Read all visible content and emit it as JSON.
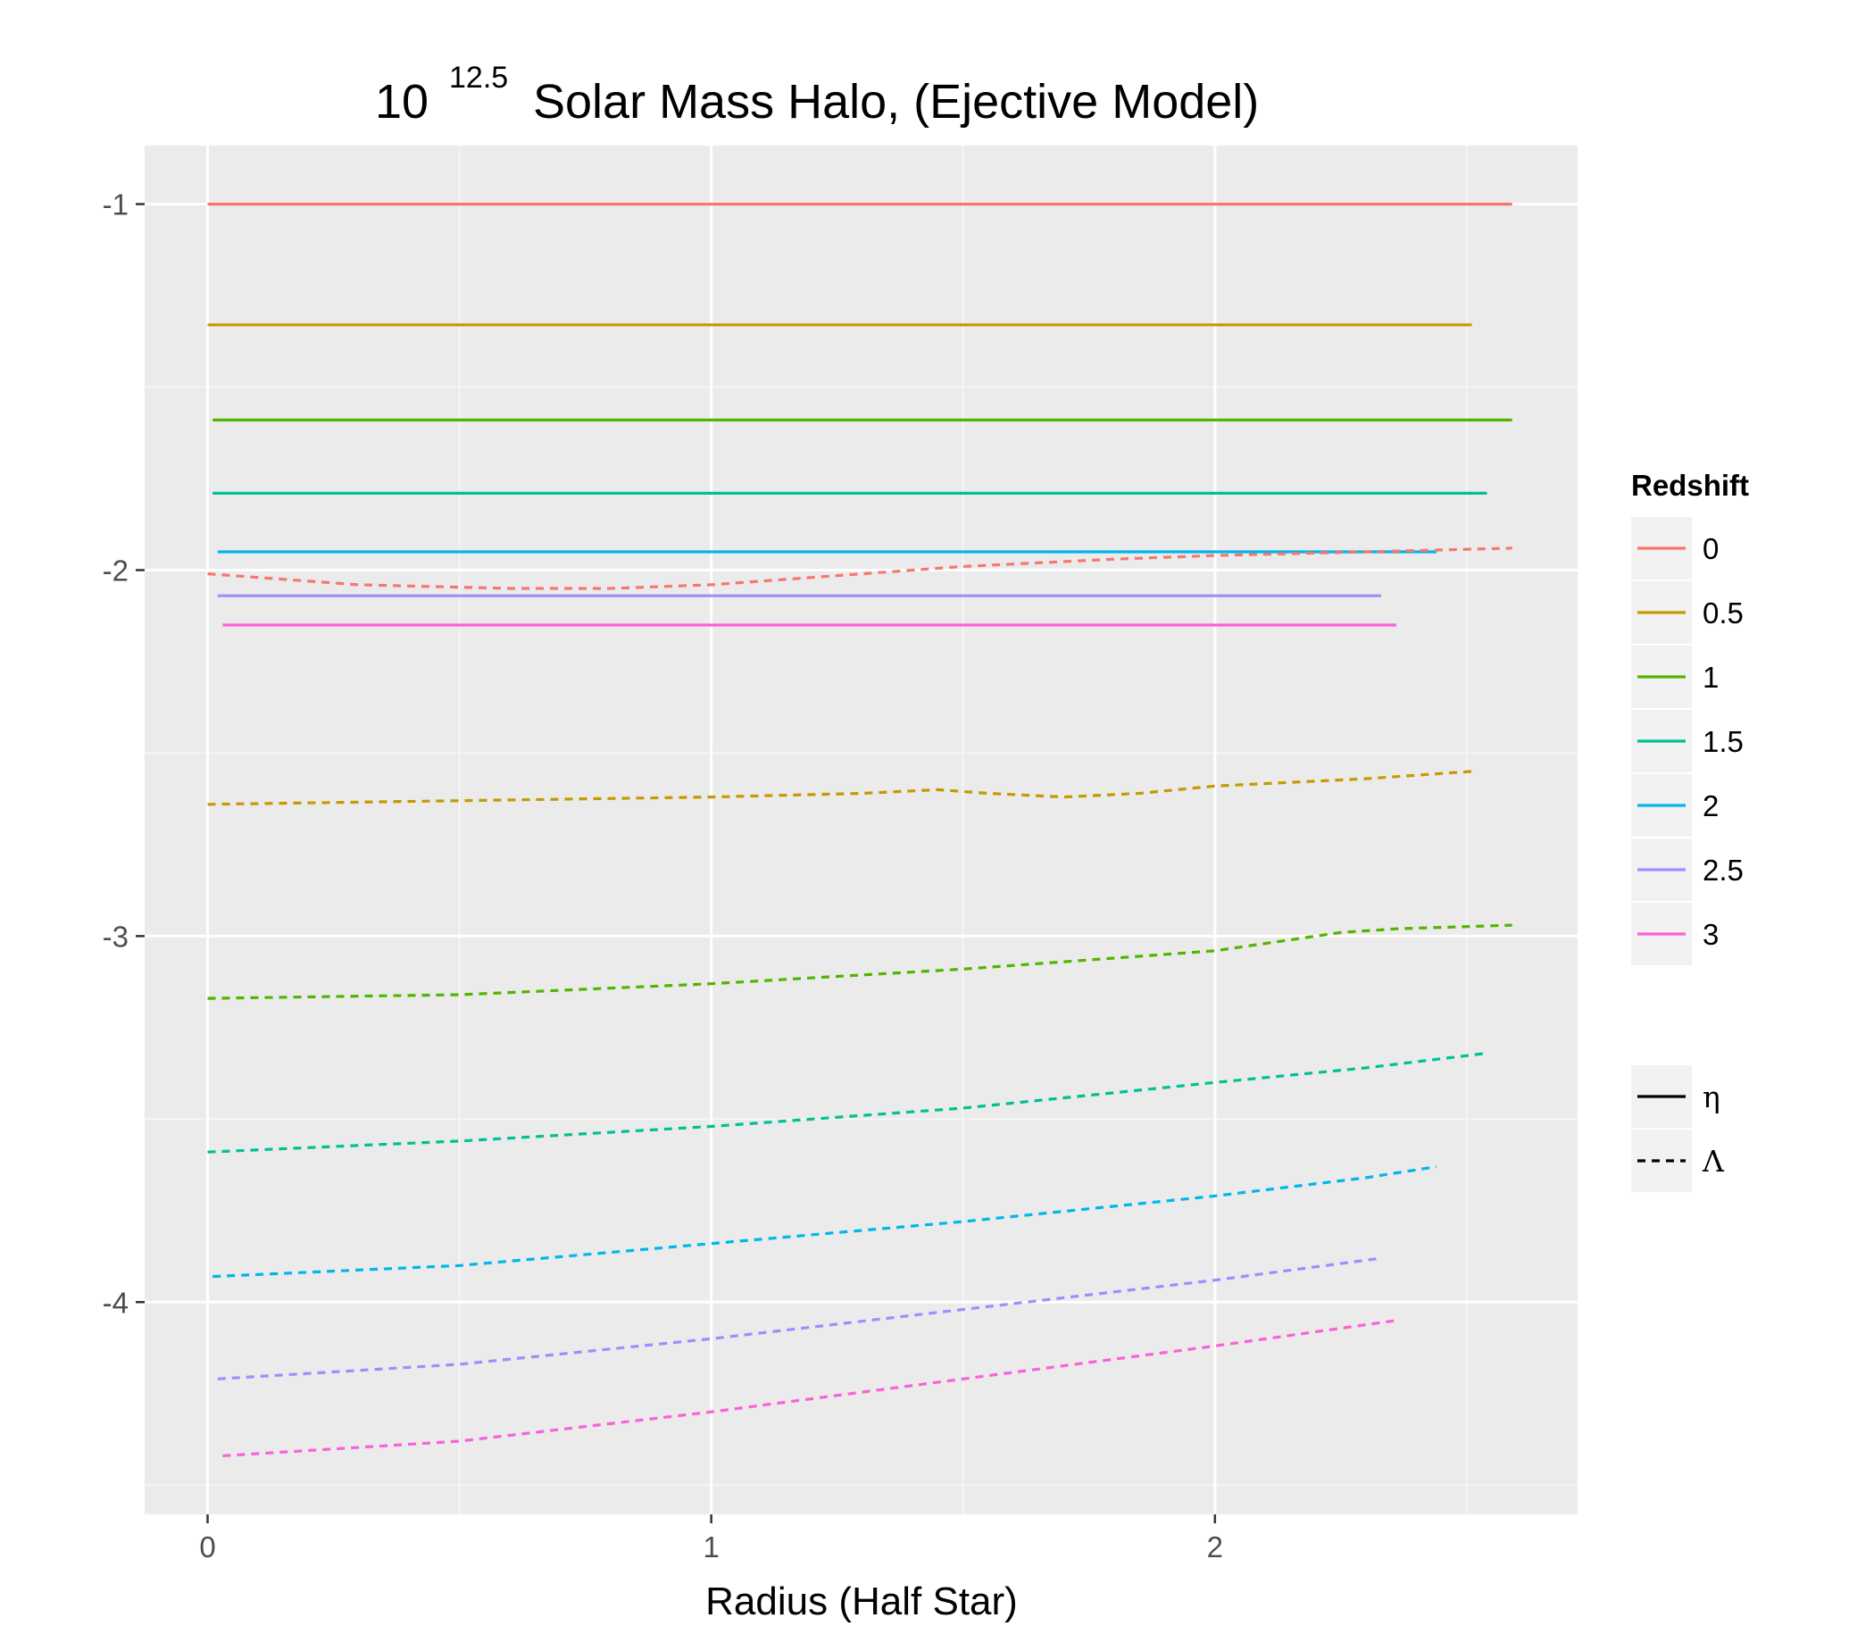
{
  "chart_data": {
    "type": "line",
    "title": {
      "base": "10",
      "superscript": "12.5",
      "text": "Solar Mass Halo, (Ejective Model)"
    },
    "xlabel": "Radius (Half Star)",
    "ylabel": "",
    "xlim": [
      -0.125,
      2.72
    ],
    "ylim": [
      -4.58,
      -0.84
    ],
    "x_ticks": [
      0,
      1,
      2
    ],
    "x_tick_labels": [
      "0",
      "1",
      "2"
    ],
    "x_minor_ticks": [
      0.5,
      1.5,
      2.5
    ],
    "y_ticks": [
      -1,
      -2,
      -3,
      -4
    ],
    "y_tick_labels": [
      "-1",
      "-2",
      "-3",
      "-4"
    ],
    "y_minor_ticks": [
      -1.5,
      -2.5,
      -3.5,
      -4.5
    ],
    "grid": true,
    "legend_colour": {
      "title": "Redshift",
      "position": "right",
      "entries": [
        {
          "label": "0",
          "color": "#F8766D"
        },
        {
          "label": "0.5",
          "color": "#C49A00"
        },
        {
          "label": "1",
          "color": "#53B400"
        },
        {
          "label": "1.5",
          "color": "#00C094"
        },
        {
          "label": "2",
          "color": "#00B6EB"
        },
        {
          "label": "2.5",
          "color": "#A58AFF"
        },
        {
          "label": "3",
          "color": "#FB61D7"
        }
      ]
    },
    "legend_linetype": {
      "position": "right",
      "entries": [
        {
          "label": "η",
          "linetype": "solid"
        },
        {
          "label": "Λ",
          "linetype": "dotted"
        }
      ]
    },
    "series": [
      {
        "name": "0",
        "linetype": "solid",
        "color": "#F8766D",
        "x": [
          0.0,
          2.59
        ],
        "y": [
          -1.0,
          -1.0
        ]
      },
      {
        "name": "0.5",
        "linetype": "solid",
        "color": "#C49A00",
        "x": [
          0.0,
          2.51
        ],
        "y": [
          -1.33,
          -1.33
        ]
      },
      {
        "name": "1",
        "linetype": "solid",
        "color": "#53B400",
        "x": [
          0.01,
          2.59
        ],
        "y": [
          -1.59,
          -1.59
        ]
      },
      {
        "name": "1.5",
        "linetype": "solid",
        "color": "#00C094",
        "x": [
          0.01,
          2.54
        ],
        "y": [
          -1.79,
          -1.79
        ]
      },
      {
        "name": "2",
        "linetype": "solid",
        "color": "#00B6EB",
        "x": [
          0.02,
          2.44
        ],
        "y": [
          -1.95,
          -1.95
        ]
      },
      {
        "name": "2.5",
        "linetype": "solid",
        "color": "#A58AFF",
        "x": [
          0.02,
          2.33
        ],
        "y": [
          -2.07,
          -2.07
        ]
      },
      {
        "name": "3",
        "linetype": "solid",
        "color": "#FB61D7",
        "x": [
          0.03,
          2.36
        ],
        "y": [
          -2.15,
          -2.15
        ]
      },
      {
        "name": "0",
        "linetype": "dotted",
        "color": "#F8766D",
        "x": [
          0.0,
          0.3,
          0.6,
          0.8,
          1.0,
          1.2,
          1.5,
          1.8,
          2.0,
          2.3,
          2.59
        ],
        "y": [
          -2.01,
          -2.04,
          -2.05,
          -2.05,
          -2.04,
          -2.02,
          -1.99,
          -1.97,
          -1.96,
          -1.95,
          -1.94
        ]
      },
      {
        "name": "0.5",
        "linetype": "dotted",
        "color": "#C49A00",
        "x": [
          0.0,
          0.5,
          1.0,
          1.3,
          1.45,
          1.55,
          1.7,
          1.85,
          2.0,
          2.3,
          2.51
        ],
        "y": [
          -2.64,
          -2.63,
          -2.62,
          -2.61,
          -2.6,
          -2.61,
          -2.62,
          -2.61,
          -2.59,
          -2.57,
          -2.55
        ]
      },
      {
        "name": "1",
        "linetype": "dotted",
        "color": "#53B400",
        "x": [
          0.0,
          0.5,
          1.0,
          1.5,
          2.0,
          2.25,
          2.36,
          2.59
        ],
        "y": [
          -3.17,
          -3.16,
          -3.13,
          -3.09,
          -3.04,
          -2.99,
          -2.98,
          -2.97
        ]
      },
      {
        "name": "1.5",
        "linetype": "dotted",
        "color": "#00C094",
        "x": [
          0.0,
          0.5,
          1.0,
          1.5,
          2.0,
          2.3,
          2.54
        ],
        "y": [
          -3.59,
          -3.56,
          -3.52,
          -3.47,
          -3.4,
          -3.36,
          -3.32
        ]
      },
      {
        "name": "2",
        "linetype": "dotted",
        "color": "#00B6EB",
        "x": [
          0.01,
          0.5,
          1.0,
          1.5,
          2.0,
          2.3,
          2.44
        ],
        "y": [
          -3.93,
          -3.9,
          -3.84,
          -3.78,
          -3.71,
          -3.66,
          -3.63
        ]
      },
      {
        "name": "2.5",
        "linetype": "dotted",
        "color": "#A58AFF",
        "x": [
          0.02,
          0.5,
          1.0,
          1.5,
          2.0,
          2.33
        ],
        "y": [
          -4.21,
          -4.17,
          -4.1,
          -4.02,
          -3.94,
          -3.88
        ]
      },
      {
        "name": "3",
        "linetype": "dotted",
        "color": "#FB61D7",
        "x": [
          0.03,
          0.5,
          1.0,
          1.5,
          2.0,
          2.36
        ],
        "y": [
          -4.42,
          -4.38,
          -4.3,
          -4.21,
          -4.12,
          -4.05
        ]
      }
    ]
  }
}
